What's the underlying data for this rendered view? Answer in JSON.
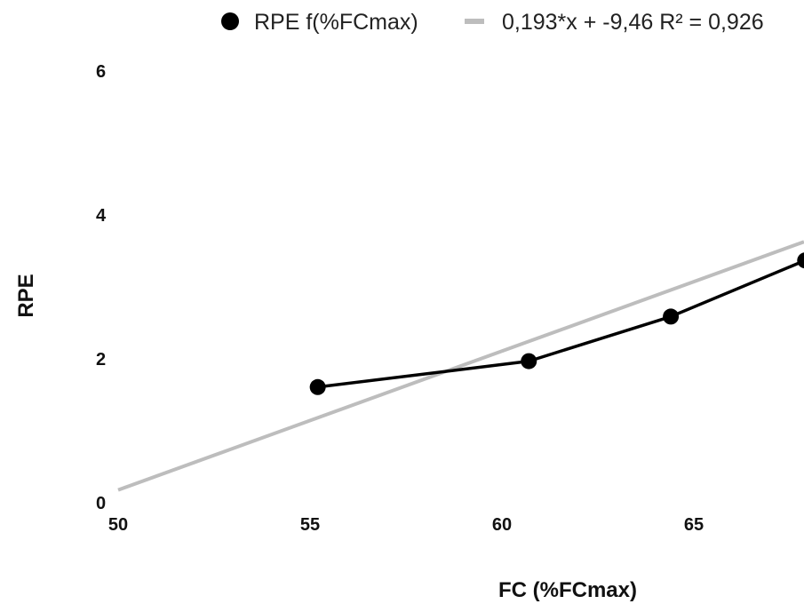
{
  "chart_data": {
    "type": "scatter",
    "xlabel": "FC (%FCmax)",
    "ylabel": "RPE",
    "xlim": [
      50,
      68
    ],
    "ylim": [
      0,
      6.3
    ],
    "x_ticks": [
      "50",
      "55",
      "60",
      "65"
    ],
    "y_ticks": [
      "0",
      "2",
      "4",
      "6"
    ],
    "grid": false,
    "legend_position": "top-right",
    "series": [
      {
        "name": "RPE f(%FCmax)",
        "color": "#000000",
        "marker": "circle",
        "points": [
          {
            "x": 55.2,
            "y": 1.62
          },
          {
            "x": 60.7,
            "y": 1.98
          },
          {
            "x": 64.4,
            "y": 2.6
          },
          {
            "x": 67.9,
            "y": 3.38
          }
        ]
      }
    ],
    "trendline": {
      "label": "0,193*x + -9,46 R² = 0,926",
      "color": "#bdbdbd",
      "slope": 0.193,
      "intercept": -9.46,
      "x_range": [
        50,
        68
      ]
    }
  }
}
